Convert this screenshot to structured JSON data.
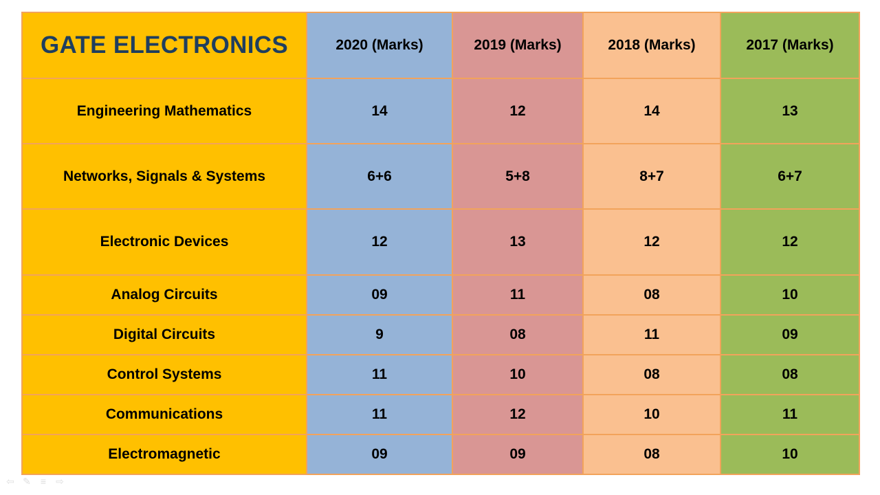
{
  "title": "GATE ELECTRONICS",
  "columns": [
    "2020 (Marks)",
    "2019 (Marks)",
    "2018 (Marks)",
    "2017 (Marks)"
  ],
  "rows": [
    {
      "subject": "Engineering Mathematics",
      "values": [
        "14",
        "12",
        "14",
        "13"
      ]
    },
    {
      "subject": "Networks, Signals & Systems",
      "values": [
        "6+6",
        "5+8",
        "8+7",
        "6+7"
      ]
    },
    {
      "subject": "Electronic Devices",
      "values": [
        "12",
        "13",
        "12",
        "12"
      ]
    },
    {
      "subject": "Analog Circuits",
      "values": [
        "09",
        "11",
        "08",
        "10"
      ]
    },
    {
      "subject": "Digital Circuits",
      "values": [
        "9",
        "08",
        "11",
        "09"
      ]
    },
    {
      "subject": "Control Systems",
      "values": [
        "11",
        "10",
        "08",
        "08"
      ]
    },
    {
      "subject": "Communications",
      "values": [
        "11",
        "12",
        "10",
        "11"
      ]
    },
    {
      "subject": "Electromagnetic",
      "values": [
        "09",
        "09",
        "08",
        "10"
      ]
    }
  ],
  "colors": {
    "subject_column": "#ffc000",
    "col_2020": "#95b3d7",
    "col_2019": "#d99694",
    "col_2018": "#fac090",
    "col_2017": "#9bbb59",
    "title_text": "#1f3e5f",
    "grid_lines": "#f2a35b"
  },
  "slide_controls": [
    "previous-icon",
    "pen-icon",
    "menu-icon",
    "next-icon"
  ]
}
